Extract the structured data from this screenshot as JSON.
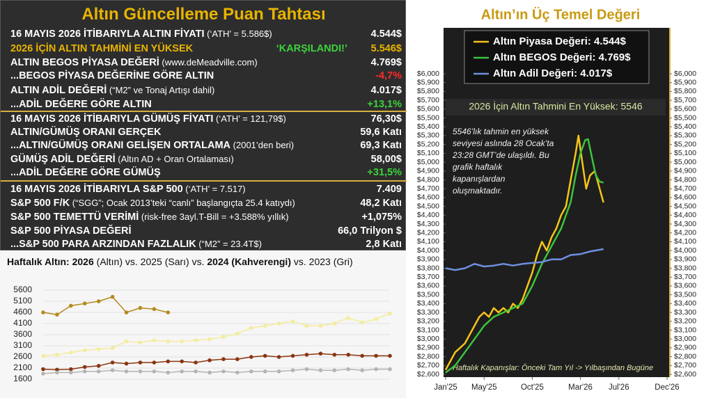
{
  "scoreboard": {
    "title": "Altın Güncelleme Puan Tahtası",
    "rows": [
      {
        "label": "16 MAYIS 2026 İTİBARIYLA ALTIN FİYATI",
        "note": " (‘ATH’ = 5.586$)",
        "value": "4.544$"
      },
      {
        "label": "2026 İÇİN ALTIN TAHMİNİ EN YÜKSEK",
        "status": "‘KARŞILANDI!’",
        "value": "5.546$"
      },
      {
        "label": "ALTIN BEGOS PİYASA DEĞERİ",
        "note": " (www.deMeadville.com)",
        "value": "4.769$"
      },
      {
        "label": "...BEGOS PİYASA DEĞERİNE GÖRE ALTIN",
        "value": "-4,7%"
      },
      {
        "label": "ALTIN ADİL DEĞERİ",
        "note": " (“M2” ve Tonaj Artışı dahil)",
        "value": "4.017$"
      },
      {
        "label": "...ADİL DEĞERE GÖRE ALTIN",
        "value": "+13,1%"
      },
      {
        "label": "16 MAYIS 2026 İTİBARIYLA GÜMÜŞ FİYATI",
        "note": " (‘ATH’ = 121,79$)",
        "value": "76,30$"
      },
      {
        "label": "ALTIN/GÜMÜŞ ORANI GERÇEK",
        "value": "59,6 Katı"
      },
      {
        "label": "...ALTIN/GÜMÜŞ ORANI GELİŞEN ORTALAMA",
        "note": " (2001’den beri)",
        "value": "69,3 Katı"
      },
      {
        "label": "GÜMÜŞ ADİL DEĞERİ",
        "note": " (Altın AD + Oran Ortalaması)",
        "value": "58,00$"
      },
      {
        "label": "...ADİL DEĞERE GÖRE GÜMÜŞ",
        "value": "+31,5%"
      },
      {
        "label": "16 MAYIS 2026 İTİBARIYLA S&P 500",
        "note": " (‘ATH’ = 7.517)",
        "value": "7.409"
      },
      {
        "label": "S&P 500 F/K",
        "note": " (“SGG”; Ocak 2013’teki “canlı” başlangıçta 25.4 katıydı)",
        "value": "48,2 Katı"
      },
      {
        "label": "S&P 500 TEMETTÜ VERİMİ",
        "note": " (risk-free 3ayl.T-Bill = +3.588% yıllık)",
        "value": "+1,075%"
      },
      {
        "label": "S&P 500 PİYASA DEĞERİ",
        "value": "66,0 Trilyon $"
      },
      {
        "label": "...S&P 500 PARA ARZINDAN FAZLALIK",
        "note": " (“M2” = 23.4T$)",
        "value": "2,8 Katı"
      }
    ]
  },
  "chart_data": [
    {
      "type": "line",
      "title": [
        "Haftalık Altın: ",
        "2026",
        " (Altın) vs. 2025 (Sarı) vs. ",
        "2024 (Kahverengi)",
        " vs. 2023 (Gri)"
      ],
      "categories": [
        null,
        null,
        null,
        null,
        null,
        null,
        null,
        null,
        null,
        null,
        null,
        null,
        null,
        null,
        null,
        null,
        null,
        null,
        null,
        null,
        null,
        null,
        null,
        null,
        null,
        null
      ],
      "ylim": [
        1600,
        5600
      ],
      "yticks": [
        1600,
        2100,
        2600,
        3100,
        3600,
        4100,
        4600,
        5100,
        5600
      ],
      "grid": true,
      "markers": true,
      "series": [
        {
          "color": "#b48a1c",
          "values": [
            4600,
            4500,
            4900,
            5000,
            5100,
            5300,
            4600,
            4800,
            4750,
            4600,
            null,
            null,
            null,
            null,
            null,
            null,
            null,
            null,
            null,
            null,
            null,
            null,
            null,
            null,
            null,
            null
          ]
        },
        {
          "color": "#f3ec9c",
          "values": [
            2650,
            2700,
            2800,
            2900,
            2950,
            3000,
            3300,
            3250,
            3350,
            3300,
            3300,
            3350,
            3400,
            3500,
            3650,
            3900,
            4000,
            4100,
            4200,
            4000,
            4000,
            4100,
            4350,
            4150,
            4300,
            4550
          ]
        },
        {
          "color": "#8a3510",
          "values": [
            2050,
            2030,
            2050,
            2150,
            2200,
            2350,
            2300,
            2350,
            2350,
            2400,
            2400,
            2350,
            2450,
            2500,
            2500,
            2600,
            2650,
            2600,
            2650,
            2700,
            2750,
            2700,
            2700,
            2650,
            2650,
            2650
          ]
        },
        {
          "color": "#b4b4b4",
          "values": [
            1850,
            1900,
            1900,
            1950,
            1950,
            2000,
            1950,
            1950,
            1950,
            1900,
            1950,
            1950,
            1900,
            1950,
            1900,
            1950,
            1950,
            1950,
            2000,
            2050,
            2000,
            2000,
            2050,
            2000,
            2050,
            2050
          ]
        }
      ]
    },
    {
      "type": "line",
      "title": "Altın’ın Üç Temel Değeri",
      "subtitle": "2026 İçin Altın Tahmini En Yüksek: 5546",
      "annotation": [
        "5546’lık tahmin en yüksek",
        "seviyesi aslında 28 Ocak’ta",
        "23:28 GMT’de ulaşıldı. Bu",
        "grafik haftalık",
        "kapanışlardan",
        "oluşmaktadır."
      ],
      "footnote": "Haftalık Kapanışlar: Önceki Tam Yıl -> Yılbaşından Bugüne",
      "xlim": [
        0,
        23
      ],
      "xticks": [
        {
          "value": 0,
          "label": "Jan'25"
        },
        {
          "value": 4,
          "label": "May'25"
        },
        {
          "value": 9,
          "label": "Oct'25"
        },
        {
          "value": 14,
          "label": "Mar'26"
        },
        {
          "value": 18,
          "label": "Jul'26"
        },
        {
          "value": 23,
          "label": "Dec'26"
        }
      ],
      "ylim": [
        2600,
        6000
      ],
      "y2lim": [
        2600,
        6000
      ],
      "yticks": [
        {
          "value": 2600,
          "label": "$2,600"
        },
        {
          "value": 2700,
          "label": "$2,700"
        },
        {
          "value": 2800,
          "label": "$2,800"
        },
        {
          "value": 2900,
          "label": "$2,900"
        },
        {
          "value": 3000,
          "label": "$3,000"
        },
        {
          "value": 3100,
          "label": "$3,100"
        },
        {
          "value": 3200,
          "label": "$3,200"
        },
        {
          "value": 3300,
          "label": "$3,300"
        },
        {
          "value": 3400,
          "label": "$3,400"
        },
        {
          "value": 3500,
          "label": "$3,500"
        },
        {
          "value": 3600,
          "label": "$3,600"
        },
        {
          "value": 3700,
          "label": "$3,700"
        },
        {
          "value": 3800,
          "label": "$3,800"
        },
        {
          "value": 3900,
          "label": "$3,900"
        },
        {
          "value": 4000,
          "label": "$4,000"
        },
        {
          "value": 4100,
          "label": "$4,100"
        },
        {
          "value": 4200,
          "label": "$4,200"
        },
        {
          "value": 4300,
          "label": "$4,300"
        },
        {
          "value": 4400,
          "label": "$4,400"
        },
        {
          "value": 4500,
          "label": "$4,500"
        },
        {
          "value": 4600,
          "label": "$4,600"
        },
        {
          "value": 4700,
          "label": "$4,700"
        },
        {
          "value": 4800,
          "label": "$4,800"
        },
        {
          "value": 4900,
          "label": "$4,900"
        },
        {
          "value": 5000,
          "label": "$5,000"
        },
        {
          "value": 5100,
          "label": "$5,100"
        },
        {
          "value": 5200,
          "label": "$5,200"
        },
        {
          "value": 5300,
          "label": "$5,300"
        },
        {
          "value": 5400,
          "label": "$5,400"
        },
        {
          "value": 5500,
          "label": "$5,500"
        },
        {
          "value": 5600,
          "label": "$5,600"
        },
        {
          "value": 5700,
          "label": "$5,700"
        },
        {
          "value": 5800,
          "label": "$5,800"
        },
        {
          "value": 5900,
          "label": "$5,900"
        },
        {
          "value": 6000,
          "label": "$6,000"
        }
      ],
      "y2ticks": [
        {
          "value": 2600,
          "label": "$2,600"
        },
        {
          "value": 2700,
          "label": "$2,700"
        },
        {
          "value": 2800,
          "label": "$2,800"
        },
        {
          "value": 2900,
          "label": "$2,900"
        },
        {
          "value": 3000,
          "label": "$3,000"
        },
        {
          "value": 3100,
          "label": "$3,100"
        },
        {
          "value": 3200,
          "label": "$3,200"
        },
        {
          "value": 3300,
          "label": "$3,300"
        },
        {
          "value": 3400,
          "label": "$3,400"
        },
        {
          "value": 3500,
          "label": "$3,500"
        },
        {
          "value": 3600,
          "label": "$3,600"
        },
        {
          "value": 3700,
          "label": "$3,700"
        },
        {
          "value": 3800,
          "label": "$3,800"
        },
        {
          "value": 3900,
          "label": "$3,900"
        },
        {
          "value": 4000,
          "label": "$4,000"
        },
        {
          "value": 4100,
          "label": "$4,100"
        },
        {
          "value": 4200,
          "label": "$4,200"
        },
        {
          "value": 4300,
          "label": "$4,300"
        },
        {
          "value": 4400,
          "label": "$4,400"
        },
        {
          "value": 4500,
          "label": "$4,500"
        },
        {
          "value": 4600,
          "label": "$4,600"
        },
        {
          "value": 4700,
          "label": "$4,700"
        },
        {
          "value": 4800,
          "label": "$4,800"
        },
        {
          "value": 4900,
          "label": "$4,900"
        },
        {
          "value": 5000,
          "label": "$5,000"
        },
        {
          "value": 5100,
          "label": "$5,100"
        },
        {
          "value": 5200,
          "label": "$5,200"
        },
        {
          "value": 5300,
          "label": "$5,300"
        },
        {
          "value": 5400,
          "label": "$5,400"
        },
        {
          "value": 5500,
          "label": "$5,500"
        },
        {
          "value": 5600,
          "label": "$5,600"
        },
        {
          "value": 5700,
          "label": "$5,700"
        },
        {
          "value": 5800,
          "label": "$5,800"
        },
        {
          "value": 5900,
          "label": "$5,900"
        },
        {
          "value": 6000,
          "label": "$6,000"
        }
      ],
      "series": [
        {
          "name": "Altın Piyasa Değeri: 4.544$",
          "color": "#f5c518",
          "x": [
            0,
            0.5,
            1,
            1.5,
            2,
            2.5,
            3,
            3.5,
            4,
            4.5,
            5,
            5.5,
            6,
            6.5,
            7,
            7.5,
            8,
            8.5,
            9,
            9.5,
            10,
            10.5,
            11,
            11.5,
            12,
            12.5,
            13,
            13.5,
            13.8,
            14.2,
            14.6,
            15,
            15.5,
            16,
            16.4
          ],
          "values": [
            2650,
            2750,
            2850,
            2900,
            2950,
            3050,
            3150,
            3250,
            3300,
            3250,
            3350,
            3300,
            3350,
            3300,
            3400,
            3350,
            3450,
            3600,
            3750,
            3950,
            4100,
            4000,
            4150,
            4250,
            4400,
            4500,
            4800,
            5100,
            5300,
            5000,
            4700,
            4850,
            4900,
            4700,
            4544
          ]
        },
        {
          "name": "Altın BEGOS Değeri: 4.769$",
          "color": "#3cc43c",
          "x": [
            0,
            1,
            2,
            3,
            4,
            5,
            6,
            7,
            8,
            9,
            10,
            11,
            12,
            13,
            13.5,
            14,
            14.5,
            14.8,
            15.2,
            15.6,
            16,
            16.4
          ],
          "values": [
            2620,
            2700,
            2850,
            3000,
            3150,
            3250,
            3300,
            3350,
            3400,
            3600,
            3850,
            4050,
            4250,
            4550,
            4850,
            5100,
            5250,
            5260,
            5050,
            4850,
            4780,
            4769
          ]
        },
        {
          "name": "Altın Adil Değeri: 4.017$",
          "color": "#6f8fe0",
          "x": [
            0,
            1,
            2,
            3,
            4,
            5,
            6,
            7,
            8,
            9,
            10,
            11,
            12,
            13,
            14,
            15,
            16.4
          ],
          "values": [
            3800,
            3780,
            3800,
            3850,
            3820,
            3830,
            3850,
            3830,
            3850,
            3860,
            3870,
            3900,
            3900,
            3950,
            3960,
            3990,
            4017
          ]
        }
      ]
    }
  ]
}
